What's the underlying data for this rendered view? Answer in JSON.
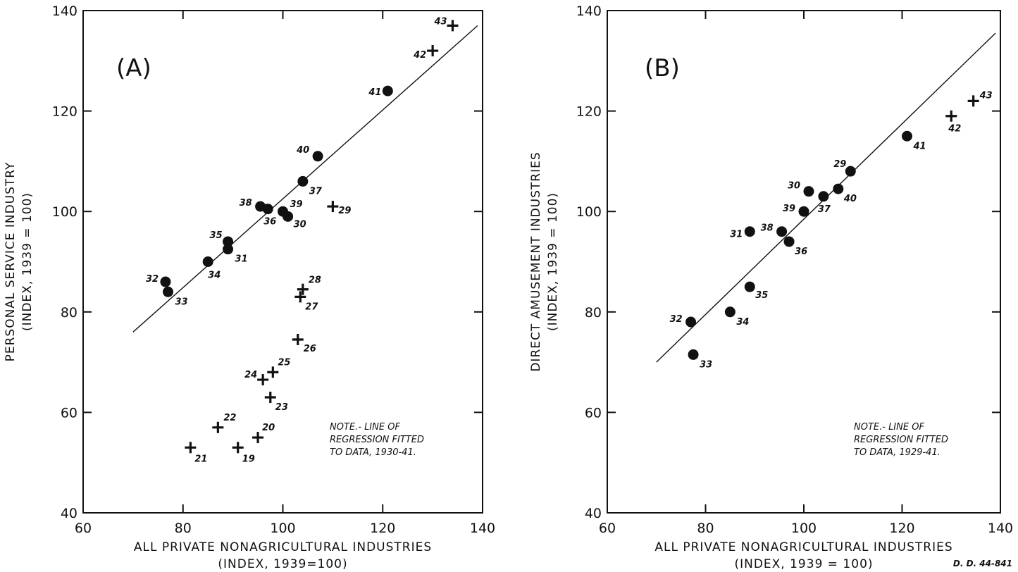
{
  "chart_data": [
    {
      "type": "scatter",
      "panel_label": "(A)",
      "xlabel": "ALL PRIVATE NONAGRICULTURAL INDUSTRIES",
      "xlabel_sub": "(INDEX, 1939=100)",
      "ylabel": "PERSONAL SERVICE INDUSTRY",
      "ylabel_sub": "(INDEX, 1939 = 100)",
      "xlim": [
        60,
        140
      ],
      "ylim": [
        40,
        140
      ],
      "xticks": [
        60,
        80,
        100,
        120,
        140
      ],
      "yticks": [
        40,
        60,
        80,
        100,
        120,
        140
      ],
      "note": [
        "NOTE.- LINE OF",
        "REGRESSION FITTED",
        "TO DATA, 1930-41."
      ],
      "regression_line": [
        [
          70,
          76
        ],
        [
          139,
          137
        ]
      ],
      "series": [
        {
          "marker": "dot",
          "points": [
            {
              "label": "30",
              "x": 101,
              "y": 99
            },
            {
              "label": "31",
              "x": 89,
              "y": 92.5
            },
            {
              "label": "32",
              "x": 76.5,
              "y": 86
            },
            {
              "label": "33",
              "x": 77,
              "y": 84
            },
            {
              "label": "34",
              "x": 85,
              "y": 90
            },
            {
              "label": "35",
              "x": 89,
              "y": 94
            },
            {
              "label": "36",
              "x": 97,
              "y": 100.5
            },
            {
              "label": "37",
              "x": 104,
              "y": 106
            },
            {
              "label": "38",
              "x": 95.5,
              "y": 101
            },
            {
              "label": "39",
              "x": 100,
              "y": 100
            },
            {
              "label": "40",
              "x": 107,
              "y": 111
            },
            {
              "label": "41",
              "x": 121,
              "y": 124
            }
          ]
        },
        {
          "marker": "cross",
          "points": [
            {
              "label": "19",
              "x": 91,
              "y": 53
            },
            {
              "label": "20",
              "x": 95,
              "y": 55
            },
            {
              "label": "21",
              "x": 81.5,
              "y": 53
            },
            {
              "label": "22",
              "x": 87,
              "y": 57
            },
            {
              "label": "23",
              "x": 97.5,
              "y": 63
            },
            {
              "label": "24",
              "x": 96,
              "y": 66.5
            },
            {
              "label": "25",
              "x": 98,
              "y": 68
            },
            {
              "label": "26",
              "x": 103,
              "y": 74.5
            },
            {
              "label": "27",
              "x": 103.5,
              "y": 83
            },
            {
              "label": "28",
              "x": 104,
              "y": 84.5
            },
            {
              "label": "29",
              "x": 110,
              "y": 101
            },
            {
              "label": "42",
              "x": 130,
              "y": 132
            },
            {
              "label": "43",
              "x": 134,
              "y": 137
            }
          ]
        }
      ]
    },
    {
      "type": "scatter",
      "panel_label": "(B)",
      "xlabel": "ALL PRIVATE NONAGRICULTURAL INDUSTRIES",
      "xlabel_sub": "(INDEX, 1939 = 100)",
      "ylabel": "DIRECT AMUSEMENT INDUSTRIES",
      "ylabel_sub": "(INDEX, 1939 = 100)",
      "xlim": [
        60,
        140
      ],
      "ylim": [
        40,
        140
      ],
      "xticks": [
        60,
        80,
        100,
        120,
        140
      ],
      "yticks": [
        40,
        60,
        80,
        100,
        120,
        140
      ],
      "note": [
        "NOTE.- LINE OF",
        "REGRESSION FITTED",
        "TO DATA, 1929-41."
      ],
      "regression_line": [
        [
          70,
          70
        ],
        [
          139,
          135.5
        ]
      ],
      "series": [
        {
          "marker": "dot",
          "points": [
            {
              "label": "29",
              "x": 109.5,
              "y": 108
            },
            {
              "label": "30",
              "x": 101,
              "y": 104
            },
            {
              "label": "31",
              "x": 89,
              "y": 96
            },
            {
              "label": "32",
              "x": 77,
              "y": 78
            },
            {
              "label": "33",
              "x": 77.5,
              "y": 71.5
            },
            {
              "label": "34",
              "x": 85,
              "y": 80
            },
            {
              "label": "35",
              "x": 89,
              "y": 85
            },
            {
              "label": "36",
              "x": 97,
              "y": 94
            },
            {
              "label": "37",
              "x": 104,
              "y": 103
            },
            {
              "label": "38",
              "x": 95.5,
              "y": 96
            },
            {
              "label": "39",
              "x": 100,
              "y": 100
            },
            {
              "label": "40",
              "x": 107,
              "y": 104.5
            },
            {
              "label": "41",
              "x": 121,
              "y": 115
            }
          ]
        },
        {
          "marker": "cross",
          "points": [
            {
              "label": "42",
              "x": 130,
              "y": 119
            },
            {
              "label": "43",
              "x": 134.5,
              "y": 122
            }
          ]
        }
      ]
    }
  ],
  "reference_code": "D. D. 44-841"
}
